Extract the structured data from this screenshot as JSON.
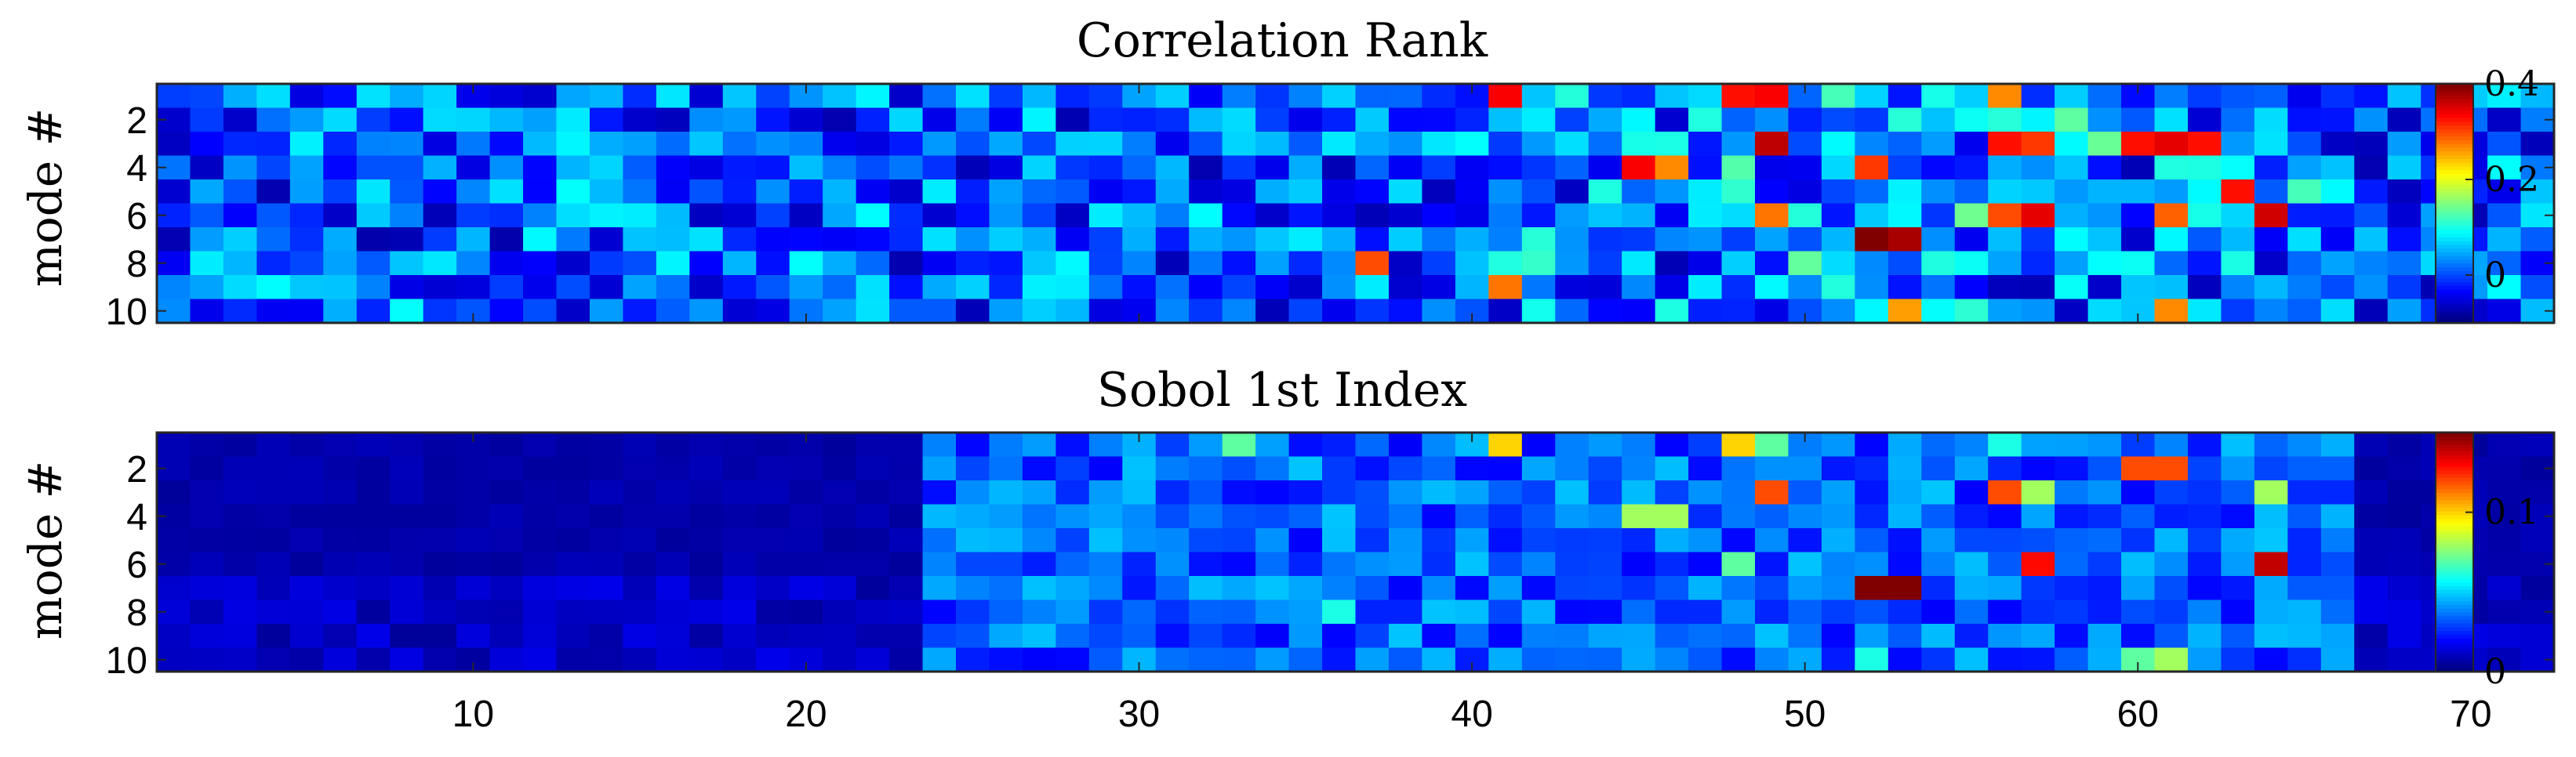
{
  "chart_data": [
    {
      "type": "heatmap",
      "title": "Correlation Rank",
      "ylabel": "mode #",
      "colormap": "jet",
      "x_range": [
        1,
        72
      ],
      "y_range": [
        1,
        10
      ],
      "yticks": [
        "2",
        "4",
        "6",
        "8",
        "10"
      ],
      "xticks": [],
      "colorbar": {
        "range": [
          -0.1,
          0.4
        ],
        "ticks": [
          "0",
          "0.2",
          "0.4"
        ],
        "tick_values": [
          0,
          0.2,
          0.4
        ]
      },
      "hotspots": [
        {
          "mode": 1,
          "param": 41,
          "value": 0.34
        },
        {
          "mode": 1,
          "param": 48,
          "value": 0.33
        },
        {
          "mode": 1,
          "param": 49,
          "value": 0.34
        },
        {
          "mode": 1,
          "param": 56,
          "value": 0.27
        },
        {
          "mode": 3,
          "param": 49,
          "value": 0.37
        },
        {
          "mode": 3,
          "param": 56,
          "value": 0.33
        },
        {
          "mode": 3,
          "param": 57,
          "value": 0.31
        },
        {
          "mode": 3,
          "param": 60,
          "value": 0.33
        },
        {
          "mode": 3,
          "param": 61,
          "value": 0.35
        },
        {
          "mode": 3,
          "param": 62,
          "value": 0.33
        },
        {
          "mode": 4,
          "param": 45,
          "value": 0.34
        },
        {
          "mode": 4,
          "param": 46,
          "value": 0.27
        },
        {
          "mode": 4,
          "param": 52,
          "value": 0.31
        },
        {
          "mode": 5,
          "param": 63,
          "value": 0.33
        },
        {
          "mode": 6,
          "param": 49,
          "value": 0.28
        },
        {
          "mode": 6,
          "param": 56,
          "value": 0.3
        },
        {
          "mode": 6,
          "param": 57,
          "value": 0.35
        },
        {
          "mode": 6,
          "param": 61,
          "value": 0.29
        },
        {
          "mode": 6,
          "param": 64,
          "value": 0.36
        },
        {
          "mode": 7,
          "param": 52,
          "value": 0.46
        },
        {
          "mode": 7,
          "param": 53,
          "value": 0.38
        },
        {
          "mode": 8,
          "param": 37,
          "value": 0.3
        },
        {
          "mode": 9,
          "param": 41,
          "value": 0.28
        },
        {
          "mode": 10,
          "param": 53,
          "value": 0.26
        },
        {
          "mode": 10,
          "param": 61,
          "value": 0.27
        }
      ]
    },
    {
      "type": "heatmap",
      "title": "Sobol 1st Index",
      "ylabel": "mode #",
      "colormap": "jet",
      "x_range": [
        1,
        72
      ],
      "y_range": [
        1,
        10
      ],
      "yticks": [
        "2",
        "4",
        "6",
        "8",
        "10"
      ],
      "xticks": [
        "10",
        "20",
        "30",
        "40",
        "50",
        "60",
        "70"
      ],
      "xtick_values": [
        10,
        20,
        30,
        40,
        50,
        60,
        70
      ],
      "colorbar": {
        "range": [
          0,
          0.15
        ],
        "ticks": [
          "0",
          "0.1"
        ],
        "tick_values": [
          0,
          0.1
        ]
      },
      "hotspots": [
        {
          "mode": 1,
          "param": 33,
          "value": 0.07
        },
        {
          "mode": 1,
          "param": 41,
          "value": 0.1
        },
        {
          "mode": 1,
          "param": 48,
          "value": 0.1
        },
        {
          "mode": 1,
          "param": 49,
          "value": 0.07
        },
        {
          "mode": 1,
          "param": 56,
          "value": 0.06
        },
        {
          "mode": 3,
          "param": 49,
          "value": 0.12
        },
        {
          "mode": 3,
          "param": 56,
          "value": 0.12
        },
        {
          "mode": 3,
          "param": 57,
          "value": 0.08
        },
        {
          "mode": 2,
          "param": 60,
          "value": 0.12
        },
        {
          "mode": 2,
          "param": 61,
          "value": 0.12
        },
        {
          "mode": 3,
          "param": 64,
          "value": 0.08
        },
        {
          "mode": 4,
          "param": 45,
          "value": 0.08
        },
        {
          "mode": 4,
          "param": 46,
          "value": 0.08
        },
        {
          "mode": 6,
          "param": 57,
          "value": 0.13
        },
        {
          "mode": 6,
          "param": 64,
          "value": 0.14
        },
        {
          "mode": 6,
          "param": 48,
          "value": 0.07
        },
        {
          "mode": 7,
          "param": 52,
          "value": 0.15
        },
        {
          "mode": 7,
          "param": 53,
          "value": 0.15
        },
        {
          "mode": 8,
          "param": 36,
          "value": 0.06
        },
        {
          "mode": 10,
          "param": 52,
          "value": 0.06
        },
        {
          "mode": 10,
          "param": 60,
          "value": 0.07
        },
        {
          "mode": 10,
          "param": 61,
          "value": 0.08
        }
      ]
    }
  ]
}
